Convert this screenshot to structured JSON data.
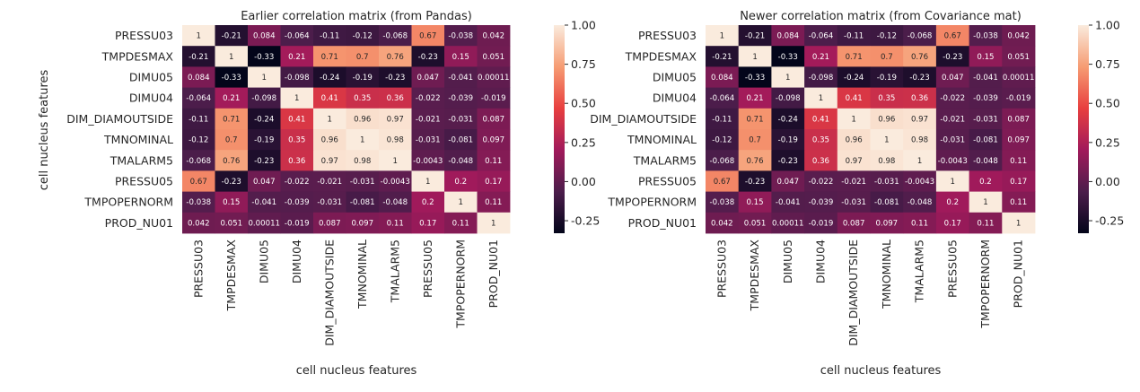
{
  "chart_data": [
    {
      "type": "heatmap",
      "title": "Earlier correlation matrix (from Pandas)",
      "xlabel": "cell nucleus features",
      "ylabel": "cell nucleus features",
      "features": [
        "PRESSU03",
        "TMPDESMAX",
        "DIMU05",
        "DIMU04",
        "DIM_DIAMOUTSIDE",
        "TMNOMINAL",
        "TMALARM5",
        "PRESSU05",
        "TMPOPERNORM",
        "PROD_NU01"
      ],
      "matrix": [
        [
          1,
          -0.21,
          0.084,
          -0.064,
          -0.11,
          -0.12,
          -0.068,
          0.67,
          -0.038,
          0.042
        ],
        [
          -0.21,
          1,
          -0.33,
          0.21,
          0.71,
          0.7,
          0.76,
          -0.23,
          0.15,
          0.051
        ],
        [
          0.084,
          -0.33,
          1,
          -0.098,
          -0.24,
          -0.19,
          -0.23,
          0.047,
          -0.041,
          0.00011
        ],
        [
          -0.064,
          0.21,
          -0.098,
          1,
          0.41,
          0.35,
          0.36,
          -0.022,
          -0.039,
          -0.019
        ],
        [
          -0.11,
          0.71,
          -0.24,
          0.41,
          1,
          0.96,
          0.97,
          -0.021,
          -0.031,
          0.087
        ],
        [
          -0.12,
          0.7,
          -0.19,
          0.35,
          0.96,
          1,
          0.98,
          -0.031,
          -0.081,
          0.097
        ],
        [
          -0.068,
          0.76,
          -0.23,
          0.36,
          0.97,
          0.98,
          1,
          -0.0043,
          -0.048,
          0.11
        ],
        [
          0.67,
          -0.23,
          0.047,
          -0.022,
          -0.021,
          -0.031,
          -0.0043,
          1,
          0.2,
          0.17
        ],
        [
          -0.038,
          0.15,
          -0.041,
          -0.039,
          -0.031,
          -0.081,
          -0.048,
          0.2,
          1,
          0.11
        ],
        [
          0.042,
          0.051,
          0.00011,
          -0.019,
          0.087,
          0.097,
          0.11,
          0.17,
          0.11,
          1
        ]
      ],
      "colorbar": {
        "vmin": -0.33,
        "vmax": 1.0,
        "ticks": [
          "-0.25",
          "0.00",
          "0.25",
          "0.50",
          "0.75",
          "1.00"
        ]
      }
    },
    {
      "type": "heatmap",
      "title": "Newer correlation matrix (from Covariance mat)",
      "xlabel": "cell nucleus features",
      "ylabel": "",
      "features": [
        "PRESSU03",
        "TMPDESMAX",
        "DIMU05",
        "DIMU04",
        "DIM_DIAMOUTSIDE",
        "TMNOMINAL",
        "TMALARM5",
        "PRESSU05",
        "TMPOPERNORM",
        "PROD_NU01"
      ],
      "matrix": [
        [
          1,
          -0.21,
          0.084,
          -0.064,
          -0.11,
          -0.12,
          -0.068,
          0.67,
          -0.038,
          0.042
        ],
        [
          -0.21,
          1,
          -0.33,
          0.21,
          0.71,
          0.7,
          0.76,
          -0.23,
          0.15,
          0.051
        ],
        [
          0.084,
          -0.33,
          1,
          -0.098,
          -0.24,
          -0.19,
          -0.23,
          0.047,
          -0.041,
          0.00011
        ],
        [
          -0.064,
          0.21,
          -0.098,
          1,
          0.41,
          0.35,
          0.36,
          -0.022,
          -0.039,
          -0.019
        ],
        [
          -0.11,
          0.71,
          -0.24,
          0.41,
          1,
          0.96,
          0.97,
          -0.021,
          -0.031,
          0.087
        ],
        [
          -0.12,
          0.7,
          -0.19,
          0.35,
          0.96,
          1,
          0.98,
          -0.031,
          -0.081,
          0.097
        ],
        [
          -0.068,
          0.76,
          -0.23,
          0.36,
          0.97,
          0.98,
          1,
          -0.0043,
          -0.048,
          0.11
        ],
        [
          0.67,
          -0.23,
          0.047,
          -0.022,
          -0.021,
          -0.031,
          -0.0043,
          1,
          0.2,
          0.17
        ],
        [
          -0.038,
          0.15,
          -0.041,
          -0.039,
          -0.031,
          -0.081,
          -0.048,
          0.2,
          1,
          0.11
        ],
        [
          0.042,
          0.051,
          0.00011,
          -0.019,
          0.087,
          0.097,
          0.11,
          0.17,
          0.11,
          1
        ]
      ],
      "colorbar": {
        "vmin": -0.33,
        "vmax": 1.0,
        "ticks": [
          "-0.25",
          "0.00",
          "0.25",
          "0.50",
          "0.75",
          "1.00"
        ]
      }
    }
  ],
  "colormap_stops": [
    "#03051a",
    "#4c1d4b",
    "#a11a5b",
    "#e83f3f",
    "#f69c73",
    "#faebdd"
  ]
}
